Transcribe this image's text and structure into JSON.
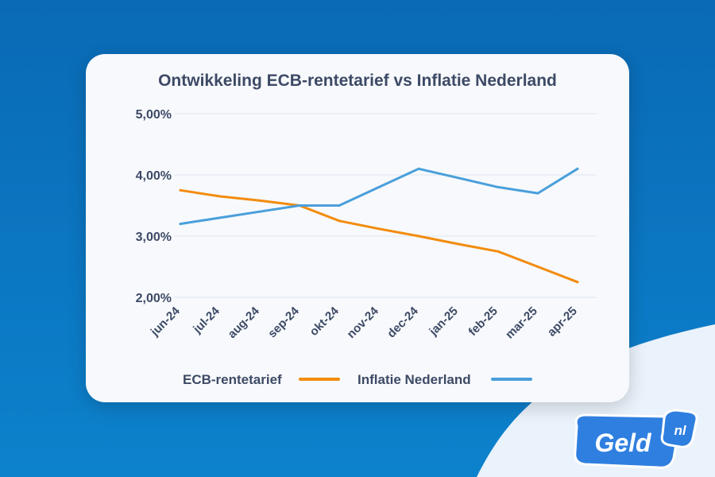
{
  "brand": {
    "logo_main": "Geld",
    "logo_suffix": "nl"
  },
  "colors": {
    "background": "#0b75c1",
    "card": "#f7f9fc",
    "text": "#3d4a66",
    "ecb": "#f28c0f",
    "inflation": "#4a9fdb",
    "grid": "#dce6f2"
  },
  "chart_data": {
    "type": "line",
    "title": "Ontwikkeling ECB-rentetarief vs Inflatie Nederland",
    "xlabel": "",
    "ylabel": "",
    "categories": [
      "jun-24",
      "jul-24",
      "aug-24",
      "sep-24",
      "okt-24",
      "nov-24",
      "dec-24",
      "jan-25",
      "feb-25",
      "mar-25",
      "apr-25"
    ],
    "ylim": [
      2.0,
      5.0
    ],
    "yticks": [
      2.0,
      3.0,
      4.0,
      5.0
    ],
    "ytick_labels": [
      "2,00%",
      "3,00%",
      "4,00%",
      "5,00%"
    ],
    "grid": true,
    "legend_position": "bottom",
    "series": [
      {
        "name": "ECB-rentetarief",
        "color": "#f28c0f",
        "values": [
          3.75,
          3.65,
          3.58,
          3.5,
          3.25,
          3.12,
          3.0,
          2.87,
          2.75,
          2.5,
          2.25
        ]
      },
      {
        "name": "Inflatie Nederland",
        "color": "#4a9fdb",
        "values": [
          3.2,
          3.3,
          3.4,
          3.5,
          3.5,
          3.8,
          4.1,
          3.95,
          3.8,
          3.7,
          4.1
        ]
      }
    ]
  }
}
